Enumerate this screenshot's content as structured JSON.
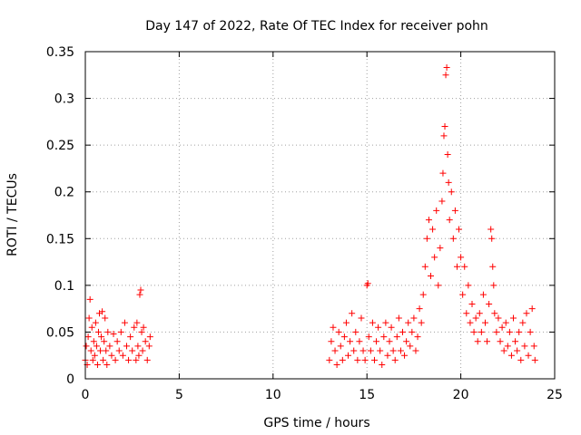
{
  "chart_data": {
    "type": "scatter",
    "title": "Day 147 of 2022, Rate Of TEC Index for receiver pohn",
    "xlabel": "GPS time / hours",
    "ylabel": "ROTI / TECUs",
    "xlim": [
      0,
      25
    ],
    "ylim": [
      0,
      0.35
    ],
    "xticks": [
      0,
      5,
      10,
      15,
      20,
      25
    ],
    "yticks": [
      0,
      0.05,
      0.1,
      0.15,
      0.2,
      0.25,
      0.3,
      0.35
    ],
    "xtick_labels": [
      "0",
      "5",
      "10",
      "15",
      "20",
      "25"
    ],
    "ytick_labels": [
      "0",
      "0.05",
      "0.1",
      "0.15",
      "0.2",
      "0.25",
      "0.3",
      "0.35"
    ],
    "grid": true,
    "marker": "+",
    "color": "#ff0000",
    "series": [
      {
        "points": [
          [
            0.0,
            0.02
          ],
          [
            0.05,
            0.035
          ],
          [
            0.1,
            0.015
          ],
          [
            0.15,
            0.045
          ],
          [
            0.2,
            0.065
          ],
          [
            0.25,
            0.085
          ],
          [
            0.3,
            0.03
          ],
          [
            0.35,
            0.055
          ],
          [
            0.4,
            0.02
          ],
          [
            0.45,
            0.04
          ],
          [
            0.5,
            0.025
          ],
          [
            0.55,
            0.06
          ],
          [
            0.6,
            0.035
          ],
          [
            0.65,
            0.015
          ],
          [
            0.7,
            0.05
          ],
          [
            0.75,
            0.07
          ],
          [
            0.8,
            0.03
          ],
          [
            0.85,
            0.045
          ],
          [
            0.9,
            0.072
          ],
          [
            0.95,
            0.02
          ],
          [
            1.0,
            0.04
          ],
          [
            1.05,
            0.065
          ],
          [
            1.1,
            0.03
          ],
          [
            1.15,
            0.015
          ],
          [
            1.2,
            0.05
          ],
          [
            1.3,
            0.035
          ],
          [
            1.4,
            0.025
          ],
          [
            1.5,
            0.048
          ],
          [
            1.6,
            0.02
          ],
          [
            1.7,
            0.04
          ],
          [
            1.8,
            0.03
          ],
          [
            1.9,
            0.05
          ],
          [
            2.0,
            0.025
          ],
          [
            2.1,
            0.06
          ],
          [
            2.2,
            0.035
          ],
          [
            2.3,
            0.02
          ],
          [
            2.4,
            0.045
          ],
          [
            2.5,
            0.03
          ],
          [
            2.6,
            0.055
          ],
          [
            2.7,
            0.02
          ],
          [
            2.75,
            0.06
          ],
          [
            2.8,
            0.035
          ],
          [
            2.85,
            0.025
          ],
          [
            2.9,
            0.09
          ],
          [
            2.95,
            0.095
          ],
          [
            3.0,
            0.05
          ],
          [
            3.05,
            0.03
          ],
          [
            3.1,
            0.055
          ],
          [
            3.2,
            0.04
          ],
          [
            3.3,
            0.02
          ],
          [
            3.4,
            0.035
          ],
          [
            3.45,
            0.045
          ],
          [
            13.0,
            0.02
          ],
          [
            13.1,
            0.04
          ],
          [
            13.2,
            0.055
          ],
          [
            13.3,
            0.03
          ],
          [
            13.4,
            0.015
          ],
          [
            13.5,
            0.05
          ],
          [
            13.6,
            0.035
          ],
          [
            13.7,
            0.02
          ],
          [
            13.8,
            0.045
          ],
          [
            13.9,
            0.06
          ],
          [
            14.0,
            0.025
          ],
          [
            14.1,
            0.04
          ],
          [
            14.2,
            0.07
          ],
          [
            14.3,
            0.03
          ],
          [
            14.4,
            0.05
          ],
          [
            14.5,
            0.02
          ],
          [
            14.6,
            0.04
          ],
          [
            14.7,
            0.065
          ],
          [
            14.8,
            0.03
          ],
          [
            14.9,
            0.02
          ],
          [
            15.0,
            0.1
          ],
          [
            15.05,
            0.102
          ],
          [
            15.1,
            0.045
          ],
          [
            15.2,
            0.03
          ],
          [
            15.3,
            0.06
          ],
          [
            15.4,
            0.02
          ],
          [
            15.5,
            0.04
          ],
          [
            15.6,
            0.055
          ],
          [
            15.7,
            0.03
          ],
          [
            15.8,
            0.015
          ],
          [
            15.9,
            0.045
          ],
          [
            16.0,
            0.06
          ],
          [
            16.1,
            0.025
          ],
          [
            16.2,
            0.04
          ],
          [
            16.3,
            0.055
          ],
          [
            16.4,
            0.03
          ],
          [
            16.5,
            0.02
          ],
          [
            16.6,
            0.045
          ],
          [
            16.7,
            0.065
          ],
          [
            16.8,
            0.03
          ],
          [
            16.9,
            0.05
          ],
          [
            17.0,
            0.025
          ],
          [
            17.1,
            0.04
          ],
          [
            17.2,
            0.06
          ],
          [
            17.3,
            0.035
          ],
          [
            17.4,
            0.05
          ],
          [
            17.5,
            0.065
          ],
          [
            17.6,
            0.03
          ],
          [
            17.7,
            0.045
          ],
          [
            17.8,
            0.075
          ],
          [
            17.9,
            0.06
          ],
          [
            18.0,
            0.09
          ],
          [
            18.1,
            0.12
          ],
          [
            18.2,
            0.15
          ],
          [
            18.3,
            0.17
          ],
          [
            18.4,
            0.11
          ],
          [
            18.5,
            0.16
          ],
          [
            18.6,
            0.13
          ],
          [
            18.7,
            0.18
          ],
          [
            18.8,
            0.1
          ],
          [
            18.9,
            0.14
          ],
          [
            19.0,
            0.19
          ],
          [
            19.05,
            0.22
          ],
          [
            19.1,
            0.26
          ],
          [
            19.15,
            0.27
          ],
          [
            19.2,
            0.325
          ],
          [
            19.25,
            0.333
          ],
          [
            19.3,
            0.24
          ],
          [
            19.35,
            0.21
          ],
          [
            19.4,
            0.17
          ],
          [
            19.5,
            0.2
          ],
          [
            19.6,
            0.15
          ],
          [
            19.7,
            0.18
          ],
          [
            19.8,
            0.12
          ],
          [
            19.9,
            0.16
          ],
          [
            20.0,
            0.13
          ],
          [
            20.1,
            0.09
          ],
          [
            20.2,
            0.12
          ],
          [
            20.3,
            0.07
          ],
          [
            20.4,
            0.1
          ],
          [
            20.5,
            0.06
          ],
          [
            20.6,
            0.08
          ],
          [
            20.7,
            0.05
          ],
          [
            20.8,
            0.065
          ],
          [
            20.9,
            0.04
          ],
          [
            21.0,
            0.07
          ],
          [
            21.1,
            0.05
          ],
          [
            21.2,
            0.09
          ],
          [
            21.3,
            0.06
          ],
          [
            21.4,
            0.04
          ],
          [
            21.5,
            0.08
          ],
          [
            21.6,
            0.16
          ],
          [
            21.65,
            0.15
          ],
          [
            21.7,
            0.12
          ],
          [
            21.75,
            0.1
          ],
          [
            21.8,
            0.07
          ],
          [
            21.9,
            0.05
          ],
          [
            22.0,
            0.065
          ],
          [
            22.1,
            0.04
          ],
          [
            22.2,
            0.055
          ],
          [
            22.3,
            0.03
          ],
          [
            22.4,
            0.06
          ],
          [
            22.5,
            0.035
          ],
          [
            22.6,
            0.05
          ],
          [
            22.7,
            0.025
          ],
          [
            22.8,
            0.065
          ],
          [
            22.9,
            0.04
          ],
          [
            23.0,
            0.03
          ],
          [
            23.1,
            0.05
          ],
          [
            23.2,
            0.02
          ],
          [
            23.3,
            0.06
          ],
          [
            23.4,
            0.035
          ],
          [
            23.5,
            0.07
          ],
          [
            23.6,
            0.025
          ],
          [
            23.7,
            0.05
          ],
          [
            23.8,
            0.075
          ],
          [
            23.9,
            0.035
          ],
          [
            23.95,
            0.02
          ]
        ]
      }
    ]
  }
}
